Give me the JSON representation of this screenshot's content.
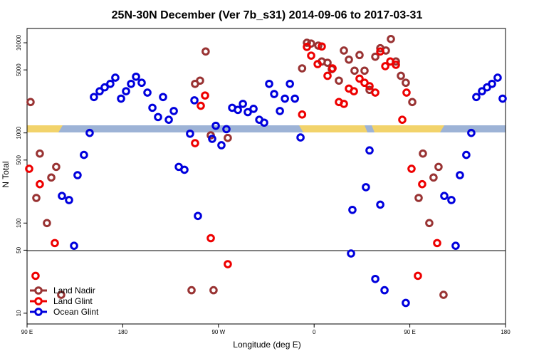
{
  "chart_data": {
    "type": "scatter",
    "title": "25N-30N December (Ver 7b_s31)   2014-09-06 to 2017-03-31",
    "x_label": "Longitude (deg E)",
    "y_label": "N Total",
    "xlim": [
      90,
      540
    ],
    "xticks": [
      {
        "value": 90,
        "label": "90 E"
      },
      180,
      {
        "value": 270,
        "label": "90 W"
      },
      {
        "value": 360,
        "label": "0"
      },
      {
        "value": 450,
        "label": "90 E"
      },
      {
        "value": 540,
        "label": "180"
      }
    ],
    "ylim": [
      7.6,
      14400
    ],
    "log_y": true,
    "yticks": [
      10,
      50,
      100,
      500,
      1000,
      5000,
      10000
    ],
    "legend": "bottom-left",
    "series": [
      {
        "name": "Land Nadir",
        "color": "#993333",
        "x": [
          93.3,
          98.7,
          102,
          108.7,
          112.8,
          117.4,
          122.1,
          248,
          252.7,
          258,
          262.8,
          244.7,
          265.4,
          278.8,
          348.7,
          353.2,
          357.1,
          363.9,
          367.2,
          372.6,
          376.6,
          383.3,
          388,
          392.7,
          398,
          402.7,
          407.4,
          412.1,
          417.5,
          422.2,
          427.5,
          432.2,
          436.9,
          441.6,
          446.2,
          452.3,
          458.3,
          462.3,
          468.3,
          472.3,
          477,
          481.7
        ],
        "values": [
          2200,
          190,
          590,
          100,
          320,
          420,
          16,
          3500,
          3800,
          8000,
          940,
          18,
          18,
          880,
          5200,
          10000,
          9800,
          9300,
          6200,
          6000,
          5100,
          3800,
          8200,
          6500,
          4900,
          7300,
          4900,
          3000,
          7000,
          8700,
          8200,
          11000,
          6200,
          4300,
          3600,
          2200,
          190,
          590,
          100,
          320,
          420,
          16
        ]
      },
      {
        "name": "Land Glint",
        "color": "#ee0000",
        "x": [
          92,
          98,
          102,
          116.1,
          248,
          253.4,
          257.4,
          262.8,
          278.8,
          348.7,
          353.2,
          357.2,
          363.3,
          367.2,
          372.6,
          377.3,
          383.3,
          388,
          392.7,
          397.4,
          402.7,
          407.4,
          412.1,
          417.5,
          422.2,
          426.9,
          431.6,
          436.9,
          442.9,
          446.9,
          451.6,
          457.6,
          461.6,
          475.7
        ],
        "values": [
          400,
          26,
          270,
          60,
          770,
          2000,
          2600,
          68,
          35,
          1600,
          9000,
          7200,
          5800,
          9100,
          4300,
          5200,
          2200,
          2100,
          3100,
          2900,
          4000,
          3600,
          3300,
          2800,
          8000,
          5500,
          6200,
          5700,
          1400,
          2800,
          400,
          26,
          270,
          60
        ]
      },
      {
        "name": "Ocean Glint",
        "color": "#0000dd",
        "x": [
          122.8,
          129.5,
          134.2,
          137.5,
          143.5,
          148.9,
          152.9,
          158.3,
          163,
          168.3,
          173,
          178.4,
          183.1,
          187.8,
          192.5,
          197.8,
          203.2,
          207.9,
          213.2,
          217.9,
          223.3,
          228,
          232.7,
          238,
          243.3,
          247.4,
          250.7,
          264.1,
          267.5,
          272.8,
          277.5,
          282.9,
          288.3,
          293,
          297.6,
          303,
          308.4,
          313,
          317.7,
          322.4,
          327.8,
          332.5,
          337.2,
          341.9,
          347.2,
          394.7,
          396,
          408.7,
          412.1,
          417.5,
          422.2,
          426.2,
          446.2,
          482.4,
          489.1,
          493.1,
          497.1,
          503.1,
          507.8,
          512.5,
          517.9,
          522.6,
          527.3,
          532.6,
          537.3
        ],
        "values": [
          200,
          180,
          56,
          340,
          570,
          1000,
          2500,
          2900,
          3200,
          3500,
          4100,
          2400,
          2900,
          3500,
          4200,
          3600,
          2800,
          1900,
          1500,
          2500,
          1400,
          1750,
          420,
          390,
          980,
          2300,
          120,
          860,
          1200,
          730,
          1100,
          1900,
          1800,
          2100,
          1700,
          1850,
          1400,
          1300,
          3500,
          2700,
          1750,
          2400,
          3500,
          2400,
          890,
          46,
          140,
          250,
          640,
          24,
          160,
          18,
          13,
          200,
          180,
          56,
          340,
          570,
          1000,
          2500,
          2900,
          3200,
          3500,
          4100,
          2400
        ]
      }
    ]
  }
}
